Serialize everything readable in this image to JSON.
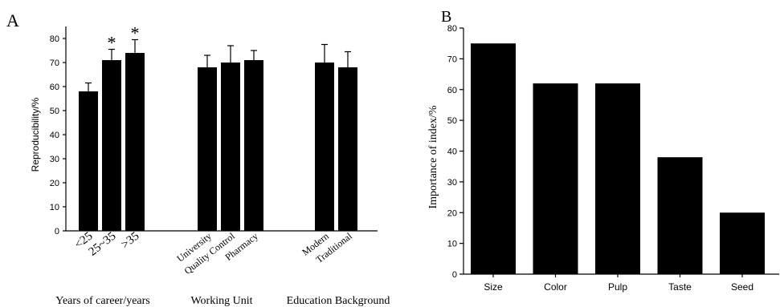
{
  "chart_data": [
    {
      "type": "bar",
      "panel_label": "A",
      "ylabel": "Reproducibility/%",
      "ylim": [
        0,
        85
      ],
      "yticks": [
        0,
        10,
        20,
        30,
        40,
        50,
        60,
        70,
        80
      ],
      "groups": [
        {
          "name": "Years of career/years",
          "categories": [
            "<25",
            "25~35",
            ">35"
          ],
          "values": [
            58,
            71,
            74
          ],
          "errors": [
            3.5,
            4.5,
            5.5
          ],
          "significance": [
            "",
            "*",
            "*"
          ]
        },
        {
          "name": "Working Unit",
          "categories": [
            "University",
            "Quality Control",
            "Pharmacy"
          ],
          "values": [
            68,
            70,
            71
          ],
          "errors": [
            5,
            7,
            4
          ],
          "significance": [
            "",
            "",
            ""
          ]
        },
        {
          "name": "Education Background",
          "categories": [
            "Modern",
            "Traditional"
          ],
          "values": [
            70,
            68
          ],
          "errors": [
            7.5,
            6.5
          ],
          "significance": [
            "",
            ""
          ]
        }
      ],
      "grid": false
    },
    {
      "type": "bar",
      "panel_label": "B",
      "ylabel": "Importance of index/%",
      "ylim": [
        0,
        80
      ],
      "yticks": [
        0,
        10,
        20,
        30,
        40,
        50,
        60,
        70,
        80
      ],
      "categories": [
        "Size",
        "Color",
        "Pulp",
        "Taste",
        "Seed"
      ],
      "values": [
        75,
        62,
        62,
        38,
        20
      ],
      "grid": false
    }
  ]
}
